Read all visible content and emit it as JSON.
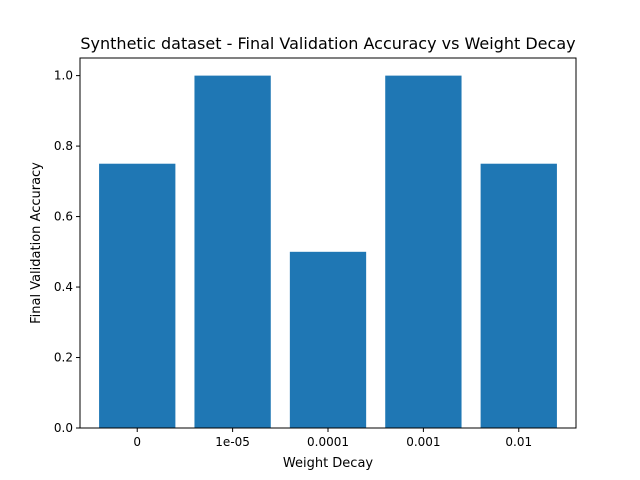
{
  "chart_data": {
    "type": "bar",
    "title": "Synthetic dataset - Final Validation Accuracy vs Weight Decay",
    "xlabel": "Weight Decay",
    "ylabel": "Final Validation Accuracy",
    "categories": [
      "0",
      "1e-05",
      "0.0001",
      "0.001",
      "0.01"
    ],
    "values": [
      0.75,
      1.0,
      0.5,
      1.0,
      0.75
    ],
    "ylim": [
      0,
      1.05
    ],
    "yticks": [
      0.0,
      0.2,
      0.4,
      0.6,
      0.8,
      1.0
    ],
    "ytick_labels": [
      "0.0",
      "0.2",
      "0.4",
      "0.6",
      "0.8",
      "1.0"
    ],
    "bar_color": "#1f77b4",
    "grid": false,
    "legend": "none"
  }
}
